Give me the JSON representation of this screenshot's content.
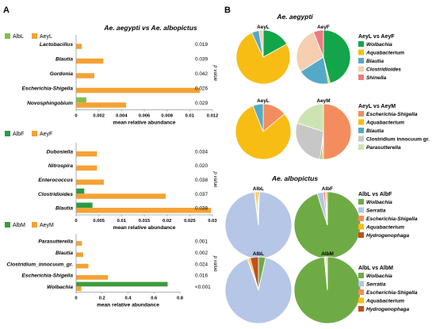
{
  "figure": {
    "panel_a_label": "A",
    "panel_b_label": "B"
  },
  "colors": {
    "aeyL": "#f4a233",
    "alb": "#7fc04f",
    "albF": "#2b9b44",
    "albM": "#3e9b3c",
    "axis": "#9a9a9a"
  },
  "chart_data": [
    {
      "type": "bar",
      "orientation": "horizontal",
      "title": "Ae. aegypti vs Ae. albopictus",
      "xlabel": "mean relative abundance",
      "ylabel": "",
      "p_label": "p value",
      "xlim": [
        0,
        0.012
      ],
      "ticks": [
        "0",
        "0.002",
        "0.004",
        "0.006",
        "0.008",
        "0.01",
        "0.012"
      ],
      "tick_values": [
        0,
        0.002,
        0.004,
        0.006,
        0.008,
        0.01,
        0.012
      ],
      "categories": [
        "Lactobacillus",
        "Blautia",
        "Gordonia",
        "Escherichia-Shigella",
        "Novosphingobium"
      ],
      "p_values": [
        "0.019",
        "0.039",
        "0.042",
        "0.026",
        "0.029"
      ],
      "series": [
        {
          "name": "AlbL",
          "color": "#7fc04f",
          "values": [
            0.0,
            0.0,
            0.0,
            0.0,
            0.0009
          ]
        },
        {
          "name": "AeyL",
          "color": "#f4a233",
          "values": [
            0.0005,
            0.0024,
            0.0016,
            0.0109,
            0.0044
          ]
        }
      ]
    },
    {
      "type": "bar",
      "orientation": "horizontal",
      "title": "",
      "xlabel": "mean relative abundance",
      "ylabel": "",
      "p_label": "p value",
      "xlim": [
        0,
        0.03
      ],
      "ticks": [
        "0",
        "0.005",
        "0.01",
        "0.015",
        "0.02",
        "0.025",
        "0.03"
      ],
      "tick_values": [
        0,
        0.005,
        0.01,
        0.015,
        0.02,
        0.025,
        0.03
      ],
      "categories": [
        "Dubosiella",
        "Nitrospira",
        "Enterococcus",
        "Clostridioides",
        "Blautia"
      ],
      "p_values": [
        "0.034",
        "0.020",
        "0.038",
        "0.037",
        "0.038"
      ],
      "series": [
        {
          "name": "AlbF",
          "color": "#2b9b44",
          "values": [
            0.0,
            0.0,
            0.0,
            0.0018,
            0.0036
          ]
        },
        {
          "name": "AeyF",
          "color": "#f4a233",
          "values": [
            0.0046,
            0.0046,
            0.0061,
            0.0197,
            0.0297
          ]
        }
      ]
    },
    {
      "type": "bar",
      "orientation": "horizontal",
      "title": "",
      "xlabel": "mean relative abundance",
      "ylabel": "",
      "p_label": "p value",
      "xlim": [
        0,
        0.8
      ],
      "ticks": [
        "0",
        "0.2",
        "0.4",
        "0.6",
        "0.8"
      ],
      "tick_values": [
        0,
        0.2,
        0.4,
        0.6,
        0.8
      ],
      "categories": [
        "Parasutterella",
        "Blautia",
        "Clostridium_innocuum_gr.",
        "Escherichia-Shigella",
        "Wolbachia"
      ],
      "p_values": [
        "0.001",
        "0.002",
        "0.024",
        "0.016",
        "<0.001"
      ],
      "series": [
        {
          "name": "AlbM",
          "color": "#3e9b3c",
          "values": [
            0.0,
            0.0,
            0.0,
            0.0,
            0.705
          ]
        },
        {
          "name": "AeyM",
          "color": "#f4a233",
          "values": [
            0.045,
            0.055,
            0.095,
            0.245,
            0.04
          ]
        }
      ]
    },
    {
      "type": "pie",
      "group_title": "Ae. aegypti",
      "title": "AeyL vs AeyF",
      "pies": [
        {
          "label": "AeyL",
          "values": [
            0.17,
            0.76,
            0.045,
            0.025
          ]
        },
        {
          "label": "AeyF",
          "values": [
            0.46,
            0.01,
            0.19,
            0.28,
            0.06
          ]
        }
      ],
      "legend": [
        {
          "name": "Wolbachia",
          "color": "#12a54a"
        },
        {
          "name": "Aquabacterium",
          "color": "#f8bd14"
        },
        {
          "name": "Blautia",
          "color": "#56a9c6"
        },
        {
          "name": "Clostridioides",
          "color": "#f5cfb0"
        },
        {
          "name": "Shinella",
          "color": "#ec7b80"
        }
      ]
    },
    {
      "type": "pie",
      "title": "AeyL vs AeyM",
      "pies": [
        {
          "label": "AeyL",
          "values": [
            0.14,
            0.8,
            0.06
          ]
        },
        {
          "label": "AeyM",
          "values": [
            0.5,
            0.01,
            0.01,
            0.28,
            0.2
          ]
        }
      ],
      "legend": [
        {
          "name": "Escherichia-Shigella",
          "color": "#f48d5e"
        },
        {
          "name": "Aquabacterium",
          "color": "#f8bd14"
        },
        {
          "name": "Blautia",
          "color": "#56a9c6"
        },
        {
          "name": "Clostridium innocuum gr.",
          "color": "#c7c7c7"
        },
        {
          "name": "Parasutterella",
          "color": "#cde4b2"
        }
      ]
    },
    {
      "type": "pie",
      "group_title": "Ae. albopictus",
      "title": "AlbL vs AlbF",
      "pies": [
        {
          "label": "AlbL",
          "values": [
            0.005,
            0.975,
            0.005,
            0.01,
            0.005
          ]
        },
        {
          "label": "AlbF",
          "values": [
            0.95,
            0.03,
            0.01,
            0.005,
            0.005
          ]
        }
      ],
      "legend": [
        {
          "name": "Wolbachia",
          "color": "#6fab45"
        },
        {
          "name": "Serratia",
          "color": "#b5c6e7"
        },
        {
          "name": "Escherichia-Shigella",
          "color": "#f48d5e"
        },
        {
          "name": "Aquabacterium",
          "color": "#f8bd14"
        },
        {
          "name": "Hydrogenophaga",
          "color": "#c0501e"
        }
      ]
    },
    {
      "type": "pie",
      "title": "AlbL vs AlbM",
      "pies": [
        {
          "label": "AlbL",
          "values": [
            0.035,
            0.91,
            0.005,
            0.01,
            0.04
          ]
        },
        {
          "label": "AlbM",
          "values": [
            0.985,
            0.005,
            0.005,
            0.005
          ]
        }
      ],
      "legend": [
        {
          "name": "Wolbachia",
          "color": "#6fab45"
        },
        {
          "name": "Serratia",
          "color": "#b5c6e7"
        },
        {
          "name": "Escherichia-Shigella",
          "color": "#f48d5e"
        },
        {
          "name": "Aquabacterium",
          "color": "#f8bd14"
        },
        {
          "name": "Hydrogenophaga",
          "color": "#c0501e"
        }
      ]
    }
  ]
}
